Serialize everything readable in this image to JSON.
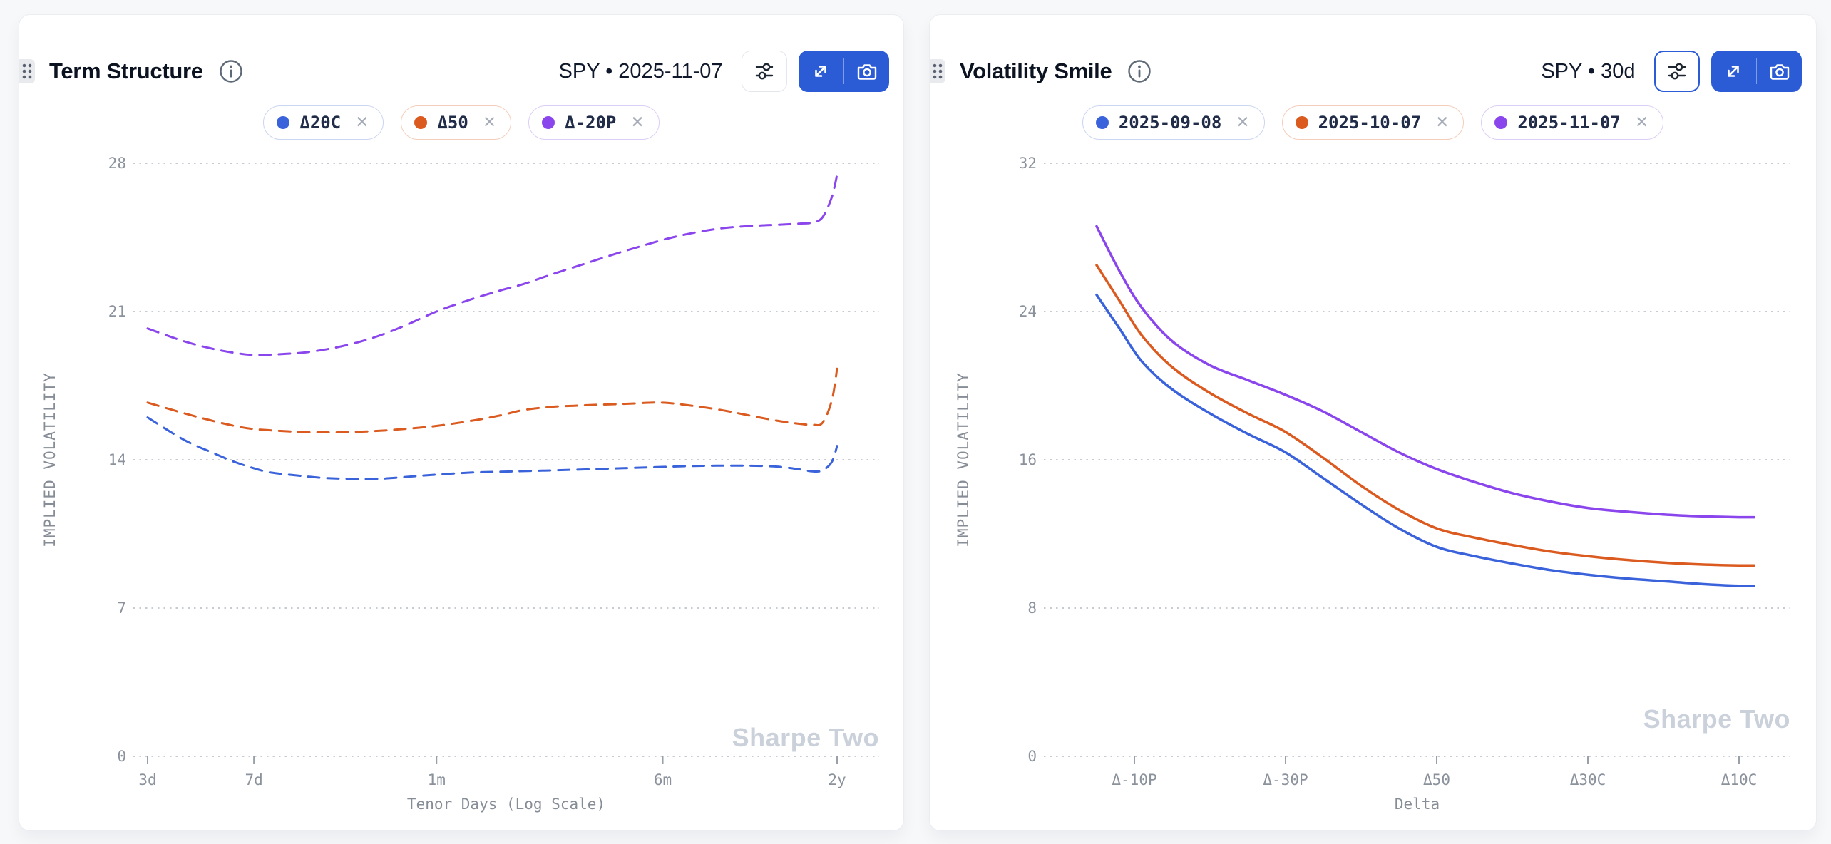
{
  "page": {
    "background_color": "#f7f8fa"
  },
  "icons": {
    "close_glyph": "✕"
  },
  "colors": {
    "accent_blue_button": "#2B5CD6",
    "series_blue": "#3A62DB",
    "series_orange": "#DA5A1F",
    "series_purple": "#8A45EC",
    "grid": "#c7cbd2",
    "tick_text": "#8b929c",
    "watermark": "#cbd1da"
  },
  "panels": [
    {
      "title": "Term Structure",
      "subtitle": "SPY • 2025-11-07",
      "watermark": "Sharpe Two",
      "legend": [
        {
          "label": "Δ20C",
          "color": "#3A62DB",
          "chip_border": "#cbd6f2"
        },
        {
          "label": "Δ50",
          "color": "#DA5A1F",
          "chip_border": "#f4ceba"
        },
        {
          "label": "Δ-20P",
          "color": "#8A45EC",
          "chip_border": "#dccef6"
        }
      ],
      "chart_data": {
        "type": "line",
        "title": "Term Structure",
        "xlabel": "Tenor Days (Log Scale)",
        "ylabel": "IMPLIED VOLATILITY",
        "x_scale": "log",
        "ylim": [
          0,
          28
        ],
        "y_ticks": [
          0,
          7,
          14,
          21,
          28
        ],
        "x_ticks": [
          {
            "value": 3,
            "label": "3d"
          },
          {
            "value": 7,
            "label": "7d"
          },
          {
            "value": 30,
            "label": "1m"
          },
          {
            "value": 182,
            "label": "6m"
          },
          {
            "value": 730,
            "label": "2y"
          }
        ],
        "grid": "dotted-horizontal",
        "line_style": "dashed",
        "legend_position": "top-center",
        "series": [
          {
            "name": "Δ20C",
            "color": "#3A62DB",
            "points": [
              [
                3,
                16.0
              ],
              [
                4,
                14.95
              ],
              [
                5,
                14.35
              ],
              [
                6,
                13.9
              ],
              [
                7,
                13.6
              ],
              [
                8,
                13.4
              ],
              [
                10,
                13.25
              ],
              [
                12,
                13.15
              ],
              [
                15,
                13.1
              ],
              [
                19,
                13.1
              ],
              [
                24,
                13.2
              ],
              [
                30,
                13.3
              ],
              [
                40,
                13.4
              ],
              [
                55,
                13.45
              ],
              [
                75,
                13.5
              ],
              [
                100,
                13.55
              ],
              [
                130,
                13.6
              ],
              [
                170,
                13.65
              ],
              [
                220,
                13.7
              ],
              [
                280,
                13.72
              ],
              [
                360,
                13.72
              ],
              [
                450,
                13.68
              ],
              [
                540,
                13.55
              ],
              [
                600,
                13.45
              ],
              [
                650,
                13.5
              ],
              [
                700,
                13.9
              ],
              [
                730,
                14.65
              ]
            ]
          },
          {
            "name": "Δ50",
            "color": "#DA5A1F",
            "points": [
              [
                3,
                16.7
              ],
              [
                4,
                16.2
              ],
              [
                5,
                15.85
              ],
              [
                6,
                15.6
              ],
              [
                7,
                15.45
              ],
              [
                9,
                15.35
              ],
              [
                11,
                15.3
              ],
              [
                14,
                15.3
              ],
              [
                18,
                15.35
              ],
              [
                23,
                15.45
              ],
              [
                30,
                15.6
              ],
              [
                40,
                15.85
              ],
              [
                50,
                16.1
              ],
              [
                60,
                16.35
              ],
              [
                75,
                16.5
              ],
              [
                90,
                16.55
              ],
              [
                110,
                16.6
              ],
              [
                140,
                16.65
              ],
              [
                180,
                16.7
              ],
              [
                230,
                16.55
              ],
              [
                290,
                16.35
              ],
              [
                360,
                16.1
              ],
              [
                450,
                15.85
              ],
              [
                540,
                15.7
              ],
              [
                600,
                15.65
              ],
              [
                650,
                15.75
              ],
              [
                700,
                16.8
              ],
              [
                730,
                18.3
              ]
            ]
          },
          {
            "name": "Δ-20P",
            "color": "#8A45EC",
            "points": [
              [
                3,
                20.2
              ],
              [
                4,
                19.6
              ],
              [
                5,
                19.25
              ],
              [
                6,
                19.05
              ],
              [
                7,
                18.95
              ],
              [
                9,
                19.0
              ],
              [
                11,
                19.1
              ],
              [
                14,
                19.35
              ],
              [
                18,
                19.75
              ],
              [
                23,
                20.3
              ],
              [
                30,
                21.0
              ],
              [
                40,
                21.6
              ],
              [
                50,
                22.0
              ],
              [
                60,
                22.3
              ],
              [
                75,
                22.75
              ],
              [
                95,
                23.2
              ],
              [
                120,
                23.65
              ],
              [
                150,
                24.05
              ],
              [
                190,
                24.45
              ],
              [
                240,
                24.75
              ],
              [
                300,
                24.95
              ],
              [
                380,
                25.05
              ],
              [
                460,
                25.1
              ],
              [
                540,
                25.15
              ],
              [
                600,
                25.2
              ],
              [
                650,
                25.45
              ],
              [
                700,
                26.4
              ],
              [
                730,
                27.45
              ]
            ]
          }
        ]
      }
    },
    {
      "title": "Volatility Smile",
      "subtitle": "SPY • 30d",
      "watermark": "Sharpe Two",
      "legend": [
        {
          "label": "2025-09-08",
          "color": "#3A62DB",
          "chip_border": "#cbd6f2"
        },
        {
          "label": "2025-10-07",
          "color": "#DA5A1F",
          "chip_border": "#f4ceba"
        },
        {
          "label": "2025-11-07",
          "color": "#8A45EC",
          "chip_border": "#dccef6"
        }
      ],
      "chart_data": {
        "type": "line",
        "title": "Volatility Smile",
        "xlabel": "Delta",
        "ylabel": "IMPLIED VOLATILITY",
        "x_scale": "linear",
        "ylim": [
          0,
          32
        ],
        "y_ticks": [
          0,
          8,
          16,
          24,
          32
        ],
        "x_ticks": [
          {
            "value": 10,
            "label": "Δ-10P"
          },
          {
            "value": 30,
            "label": "Δ-30P"
          },
          {
            "value": 50,
            "label": "Δ50"
          },
          {
            "value": 70,
            "label": "Δ30C"
          },
          {
            "value": 90,
            "label": "Δ10C"
          }
        ],
        "grid": "dotted-horizontal",
        "line_style": "solid",
        "legend_position": "top-center",
        "series": [
          {
            "name": "2025-09-08",
            "color": "#3A62DB",
            "points": [
              [
                5,
                24.9
              ],
              [
                8,
                23.1
              ],
              [
                11,
                21.3
              ],
              [
                15,
                19.8
              ],
              [
                20,
                18.5
              ],
              [
                25,
                17.4
              ],
              [
                30,
                16.4
              ],
              [
                35,
                15.0
              ],
              [
                40,
                13.6
              ],
              [
                45,
                12.3
              ],
              [
                50,
                11.3
              ],
              [
                55,
                10.8
              ],
              [
                60,
                10.4
              ],
              [
                65,
                10.05
              ],
              [
                70,
                9.8
              ],
              [
                75,
                9.6
              ],
              [
                80,
                9.45
              ],
              [
                85,
                9.3
              ],
              [
                90,
                9.2
              ],
              [
                92,
                9.2
              ]
            ]
          },
          {
            "name": "2025-10-07",
            "color": "#DA5A1F",
            "points": [
              [
                5,
                26.5
              ],
              [
                8,
                24.6
              ],
              [
                11,
                22.7
              ],
              [
                15,
                21.0
              ],
              [
                20,
                19.6
              ],
              [
                25,
                18.5
              ],
              [
                30,
                17.5
              ],
              [
                35,
                16.1
              ],
              [
                40,
                14.6
              ],
              [
                45,
                13.3
              ],
              [
                50,
                12.3
              ],
              [
                55,
                11.8
              ],
              [
                60,
                11.4
              ],
              [
                65,
                11.05
              ],
              [
                70,
                10.8
              ],
              [
                75,
                10.6
              ],
              [
                80,
                10.45
              ],
              [
                85,
                10.35
              ],
              [
                90,
                10.3
              ],
              [
                92,
                10.3
              ]
            ]
          },
          {
            "name": "2025-11-07",
            "color": "#8A45EC",
            "points": [
              [
                5,
                28.6
              ],
              [
                8,
                26.2
              ],
              [
                11,
                24.2
              ],
              [
                15,
                22.4
              ],
              [
                20,
                21.1
              ],
              [
                25,
                20.3
              ],
              [
                30,
                19.5
              ],
              [
                35,
                18.6
              ],
              [
                40,
                17.5
              ],
              [
                45,
                16.4
              ],
              [
                50,
                15.5
              ],
              [
                55,
                14.8
              ],
              [
                60,
                14.2
              ],
              [
                65,
                13.75
              ],
              [
                70,
                13.4
              ],
              [
                75,
                13.2
              ],
              [
                80,
                13.05
              ],
              [
                85,
                12.95
              ],
              [
                90,
                12.9
              ],
              [
                92,
                12.9
              ]
            ]
          }
        ]
      }
    }
  ]
}
